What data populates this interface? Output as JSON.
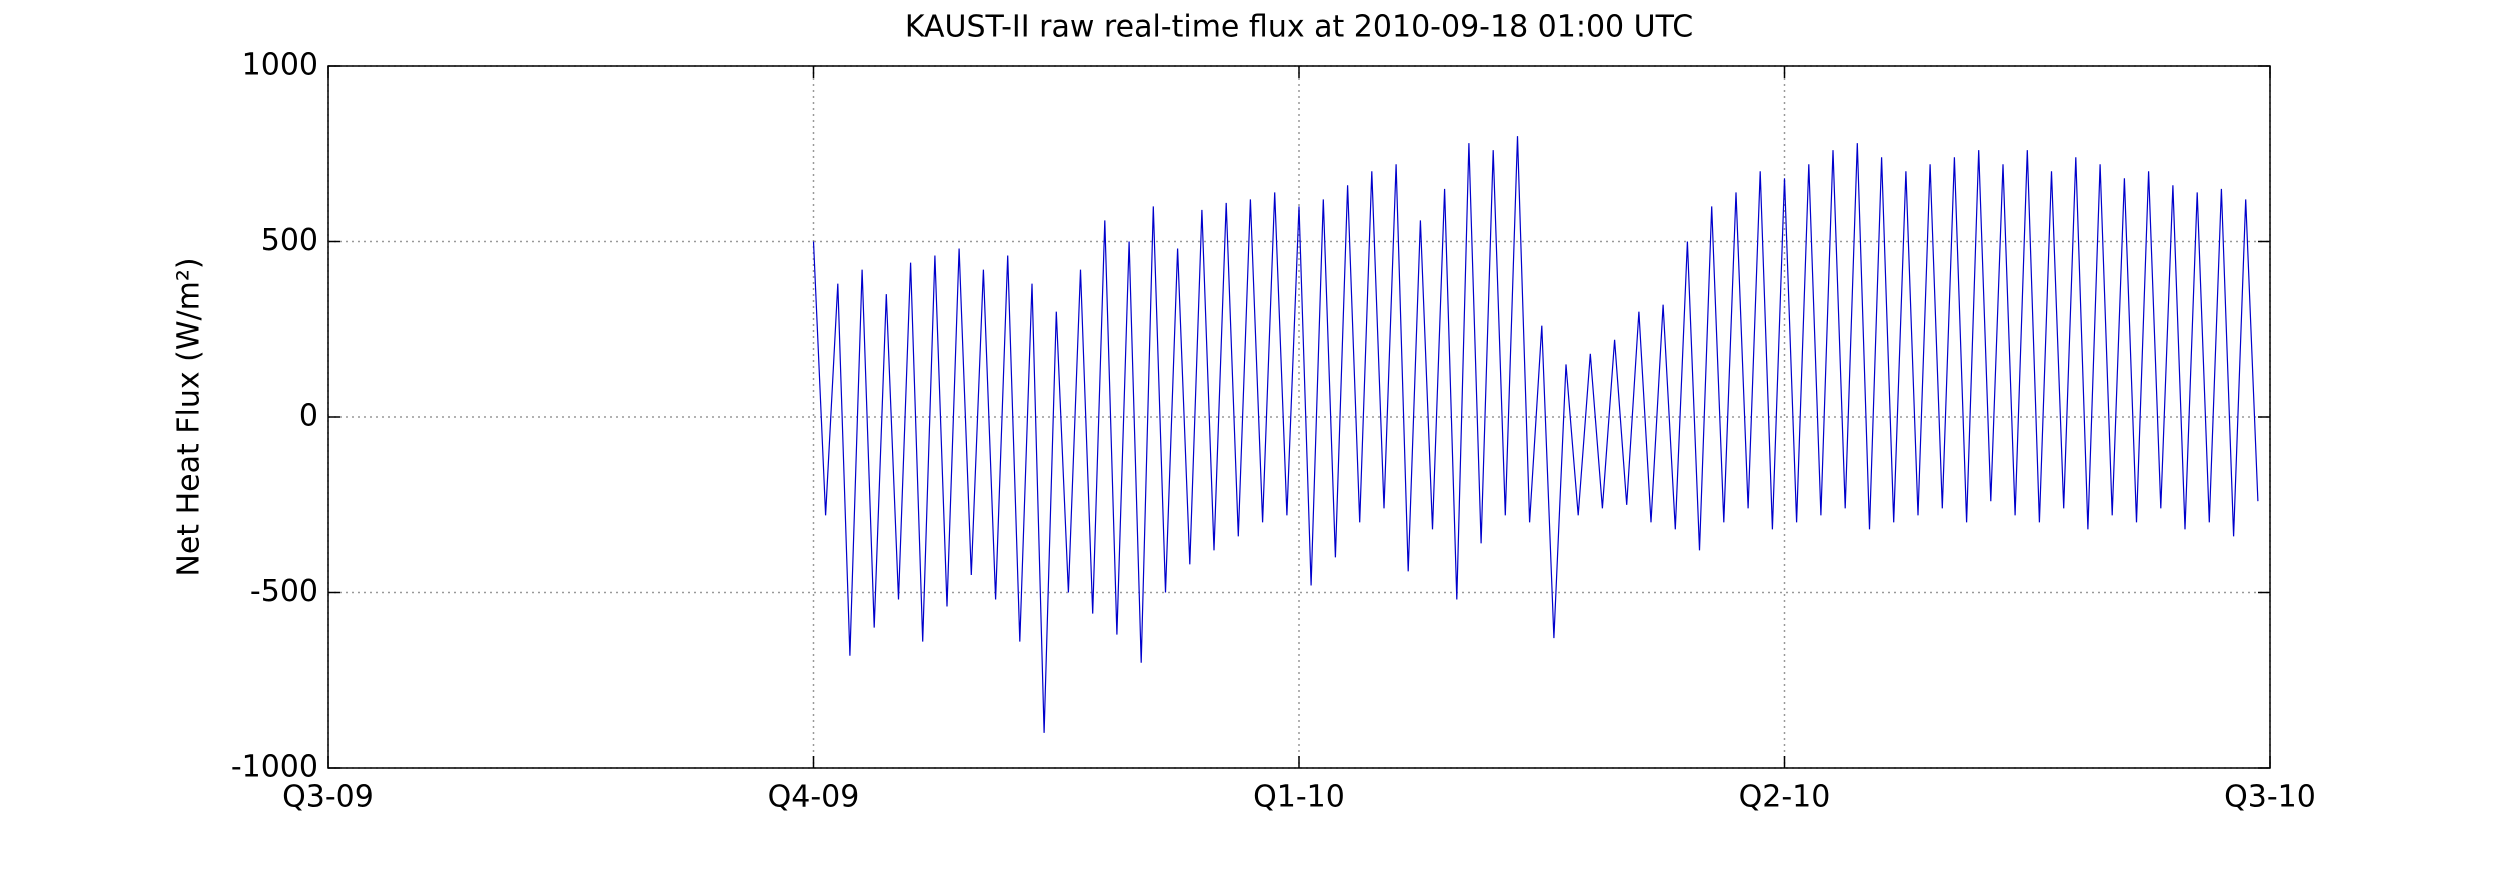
{
  "chart_data": {
    "type": "line",
    "title": "KAUST-II raw real-time flux at 2010-09-18 01:00 UTC",
    "y_label": "Net Heat Flux (W/m²)",
    "xlim": [
      0,
      4
    ],
    "xticks": [
      {
        "value": 0,
        "label": "Q3-09"
      },
      {
        "value": 1,
        "label": "Q4-09"
      },
      {
        "value": 2,
        "label": "Q1-10"
      },
      {
        "value": 3,
        "label": "Q2-10"
      },
      {
        "value": 4,
        "label": "Q3-10"
      }
    ],
    "ylim": [
      -1000,
      1000
    ],
    "yticks": [
      -1000,
      -500,
      0,
      500,
      1000
    ],
    "grid": true,
    "series": [
      {
        "color": "#0000cc",
        "x": [
          1,
          1.025,
          1.05,
          1.075,
          1.1,
          1.125,
          1.15,
          1.175,
          1.2,
          1.225,
          1.25,
          1.275,
          1.3,
          1.325,
          1.35,
          1.375,
          1.4,
          1.425,
          1.45,
          1.475,
          1.5,
          1.525,
          1.55,
          1.575,
          1.6,
          1.625,
          1.65,
          1.675,
          1.7,
          1.725,
          1.75,
          1.775,
          1.8,
          1.825,
          1.85,
          1.875,
          1.9,
          1.925,
          1.95,
          1.975,
          2,
          2.025,
          2.05,
          2.075,
          2.1,
          2.125,
          2.15,
          2.175,
          2.2,
          2.225,
          2.25,
          2.275,
          2.3,
          2.325,
          2.35,
          2.375,
          2.4,
          2.425,
          2.45,
          2.475,
          2.5,
          2.525,
          2.55,
          2.575,
          2.6,
          2.625,
          2.65,
          2.675,
          2.7,
          2.725,
          2.75,
          2.775,
          2.8,
          2.825,
          2.85,
          2.875,
          2.9,
          2.925,
          2.95,
          2.975,
          3,
          3.025,
          3.05,
          3.075,
          3.1,
          3.125,
          3.15,
          3.175,
          3.2,
          3.225,
          3.25,
          3.275,
          3.3,
          3.325,
          3.35,
          3.375,
          3.4,
          3.425,
          3.45,
          3.475,
          3.5,
          3.525,
          3.55,
          3.575,
          3.6,
          3.625,
          3.65,
          3.675,
          3.7,
          3.725,
          3.75,
          3.775,
          3.8,
          3.825,
          3.85,
          3.875,
          3.9,
          3.925,
          3.95,
          3.975
        ],
        "values": [
          500,
          -280,
          380,
          -680,
          420,
          -600,
          350,
          -520,
          440,
          -640,
          460,
          -540,
          480,
          -450,
          420,
          -520,
          460,
          -640,
          380,
          -900,
          300,
          -500,
          420,
          -560,
          560,
          -620,
          500,
          -700,
          600,
          -500,
          480,
          -420,
          590,
          -380,
          610,
          -340,
          620,
          -300,
          640,
          -280,
          600,
          -480,
          620,
          -400,
          660,
          -300,
          700,
          -260,
          720,
          -440,
          560,
          -320,
          650,
          -520,
          780,
          -360,
          760,
          -280,
          800,
          -300,
          260,
          -630,
          150,
          -280,
          180,
          -260,
          220,
          -250,
          300,
          -300,
          320,
          -320,
          500,
          -380,
          600,
          -300,
          640,
          -260,
          700,
          -320,
          680,
          -300,
          720,
          -280,
          760,
          -260,
          780,
          -320,
          740,
          -300,
          700,
          -280,
          720,
          -260,
          740,
          -300,
          760,
          -240,
          720,
          -280,
          760,
          -300,
          700,
          -260,
          740,
          -320,
          720,
          -280,
          680,
          -300,
          700,
          -260,
          660,
          -320,
          640,
          -300,
          650,
          -340,
          620,
          -240
        ]
      }
    ]
  }
}
